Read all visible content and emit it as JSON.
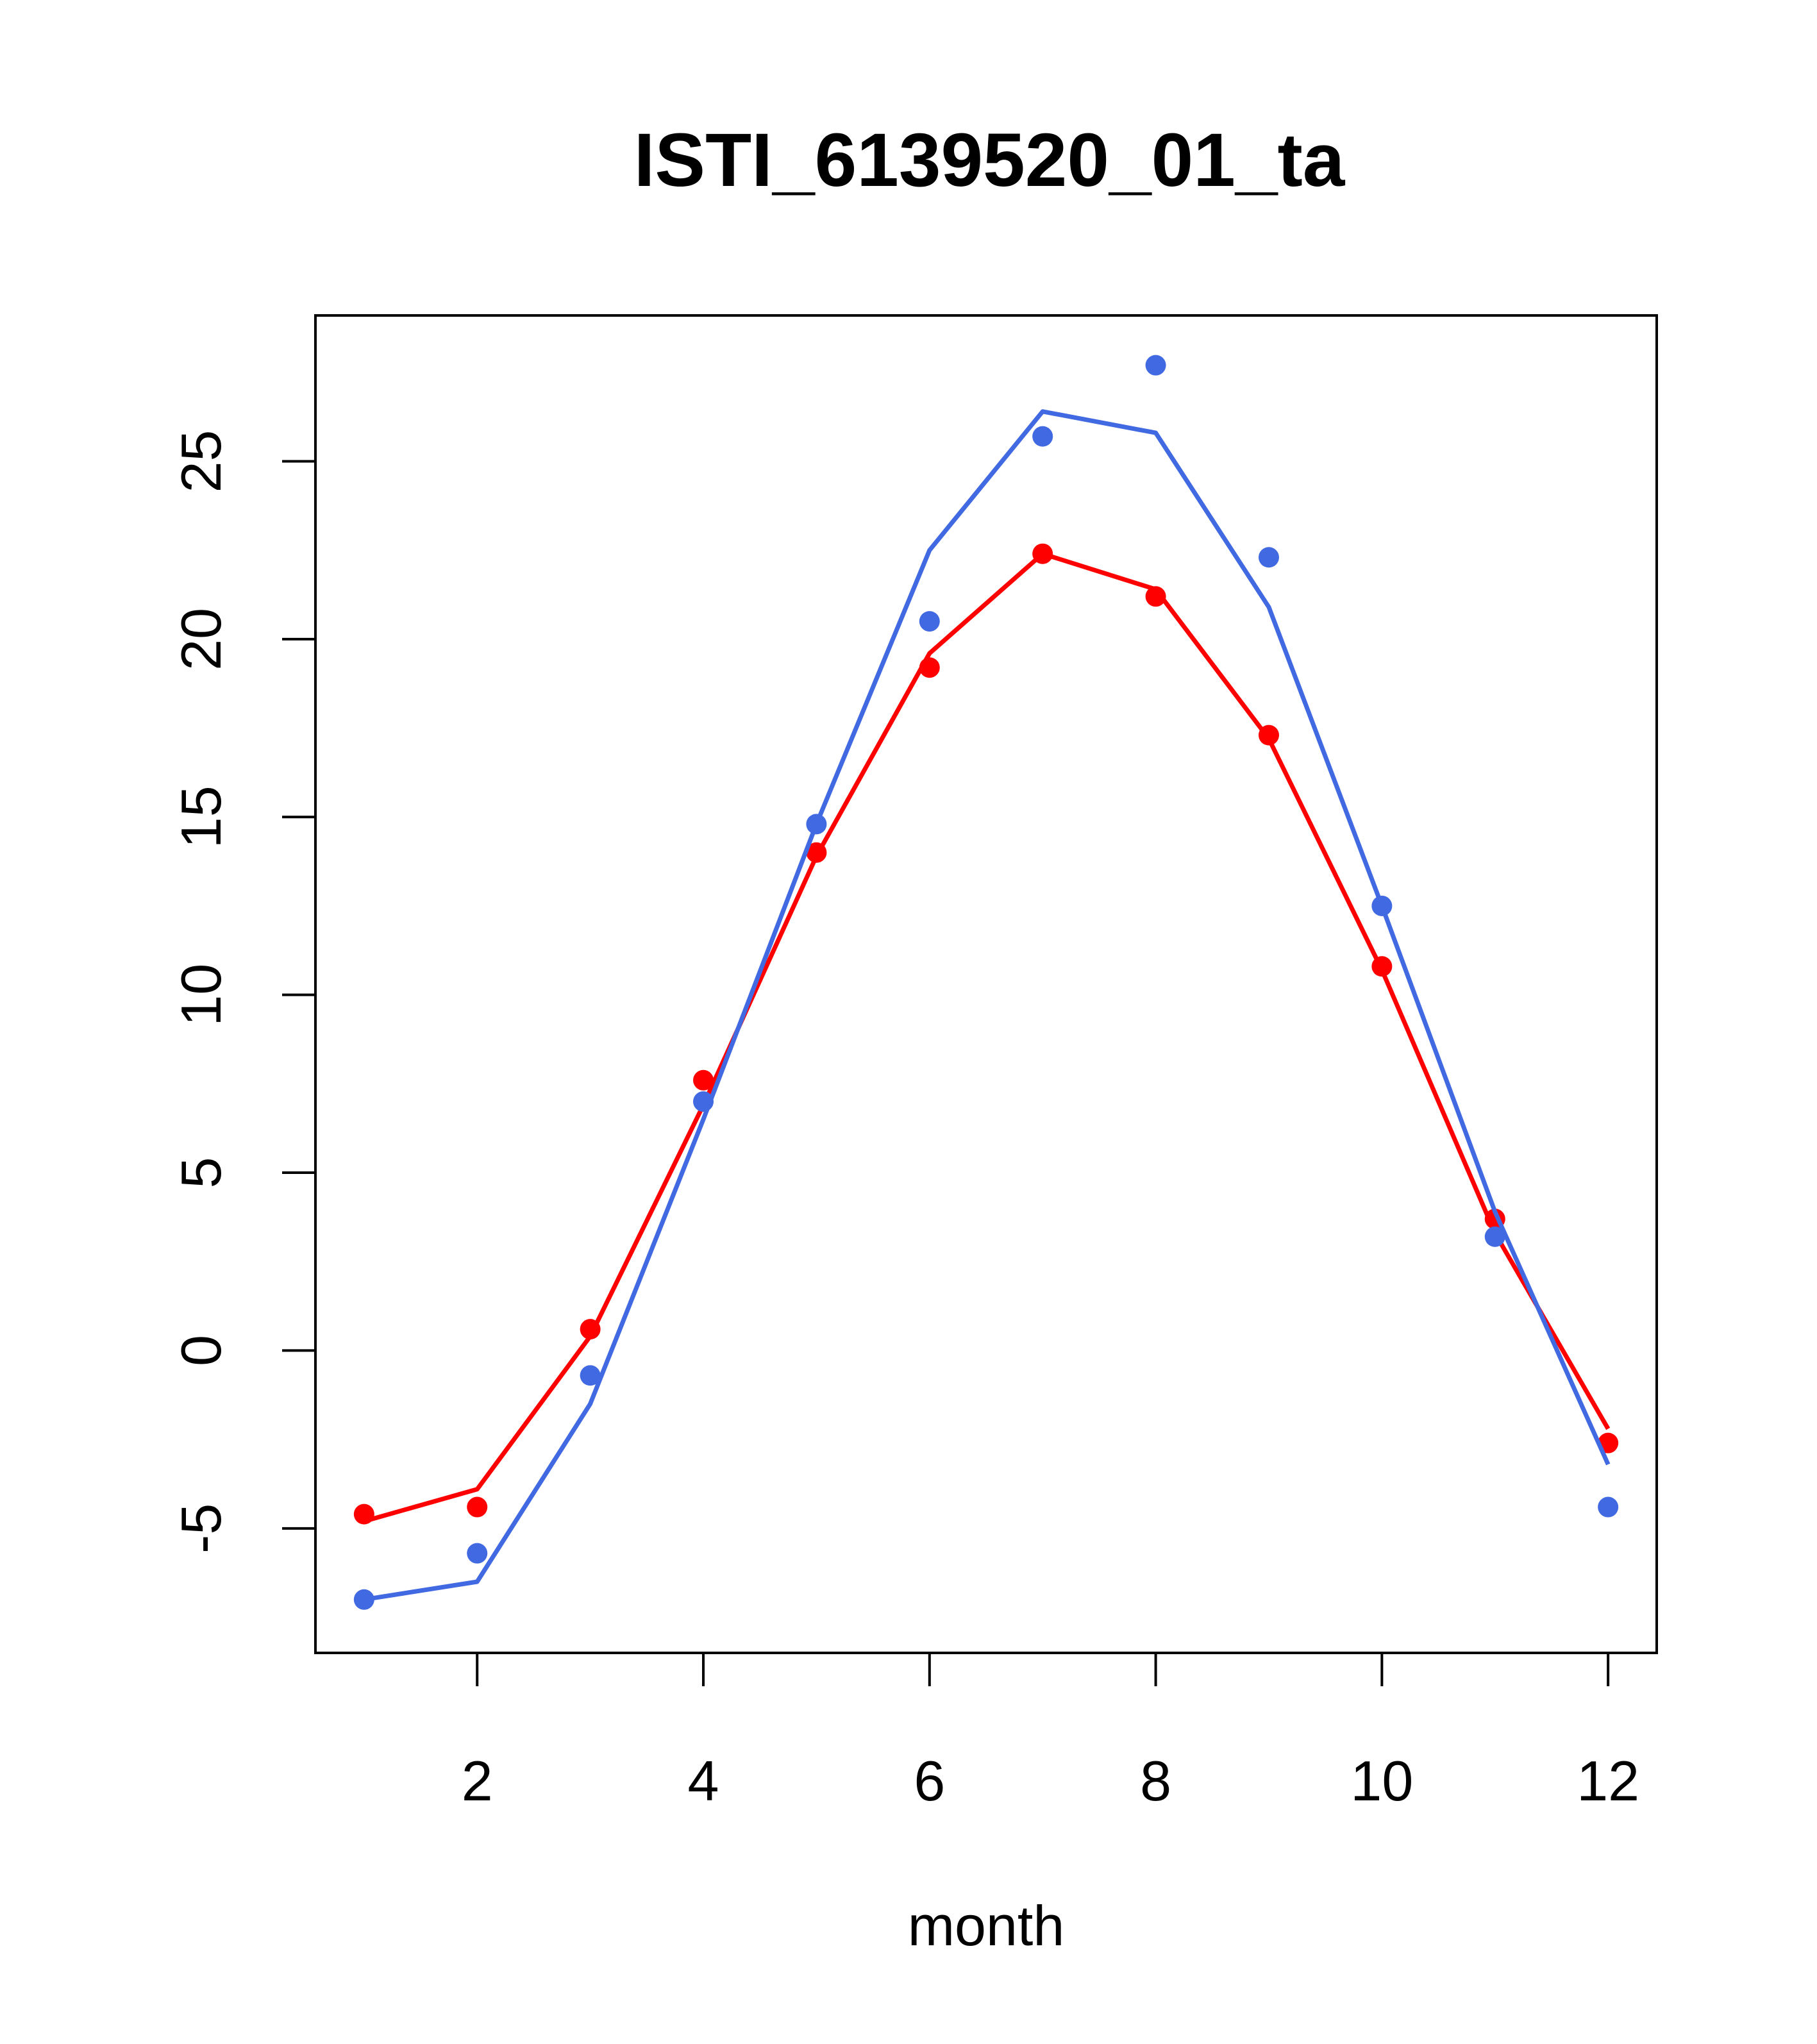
{
  "chart_data": {
    "type": "line",
    "title": "ISTI_6139520_01_ta",
    "xlabel": "month",
    "ylabel": "",
    "xlim": [
      0.57,
      12.43
    ],
    "ylim": [
      -8.5,
      29.1
    ],
    "x_ticks": [
      2,
      4,
      6,
      8,
      10,
      12
    ],
    "y_ticks": [
      -5,
      0,
      5,
      10,
      15,
      20,
      25
    ],
    "grid": false,
    "legend": "none",
    "x": [
      1,
      2,
      3,
      4,
      5,
      6,
      7,
      8,
      9,
      10,
      11,
      12
    ],
    "series": [
      {
        "color": "#ff0000",
        "points": [
          -4.6,
          -4.4,
          0.6,
          7.6,
          14.0,
          19.2,
          22.4,
          21.2,
          17.3,
          10.8,
          3.7,
          -2.6
        ],
        "line": [
          -4.8,
          -3.9,
          0.4,
          6.9,
          13.9,
          19.6,
          22.4,
          21.4,
          17.2,
          10.7,
          3.3,
          -2.2
        ]
      },
      {
        "color": "#4169e1",
        "points": [
          -7.0,
          -5.7,
          -0.7,
          7.0,
          14.8,
          20.5,
          25.7,
          27.7,
          22.3,
          12.5,
          3.2,
          -4.4
        ],
        "line": [
          -7.0,
          -6.5,
          -1.5,
          6.5,
          14.8,
          22.5,
          26.4,
          25.8,
          20.9,
          12.5,
          3.9,
          -3.2
        ]
      }
    ]
  }
}
